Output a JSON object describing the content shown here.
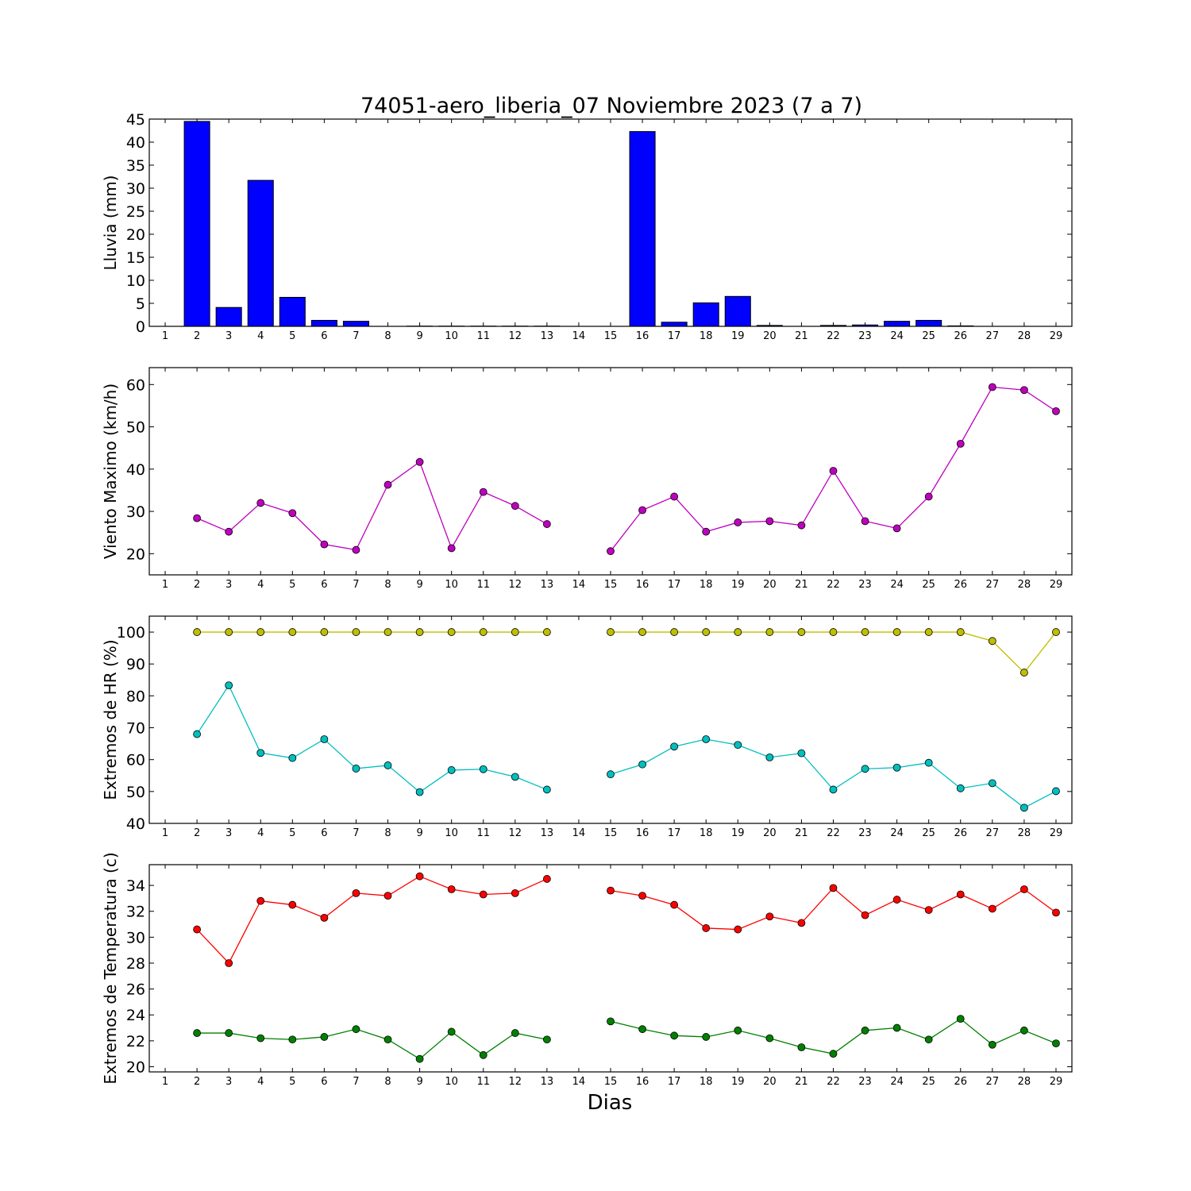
{
  "title": "74051-aero_liberia_07 Noviembre 2023  (7 a 7)",
  "xlabel": "Dias",
  "chart_data": [
    {
      "type": "bar",
      "ylabel": "Lluvia (mm)",
      "ylim": [
        0,
        45
      ],
      "yticks": [
        0,
        5,
        10,
        15,
        20,
        25,
        30,
        35,
        40,
        45
      ],
      "x": [
        1,
        2,
        3,
        4,
        5,
        6,
        7,
        8,
        9,
        10,
        11,
        12,
        13,
        14,
        15,
        16,
        17,
        18,
        19,
        20,
        21,
        22,
        23,
        24,
        25,
        26,
        27,
        28,
        29
      ],
      "series": [
        {
          "color": "#0000ff",
          "values": [
            0,
            44.5,
            4.1,
            31.7,
            6.3,
            1.3,
            1.1,
            0,
            0.05,
            0.05,
            0.05,
            0.05,
            0.05,
            0,
            0,
            42.3,
            0.9,
            5.1,
            6.5,
            0.2,
            0,
            0.2,
            0.3,
            1.1,
            1.3,
            0.1,
            0,
            0,
            0
          ]
        }
      ]
    },
    {
      "type": "line",
      "ylabel": "Viento Maximo (km/h)",
      "ylim": [
        15,
        64
      ],
      "yticks": [
        20,
        30,
        40,
        50,
        60
      ],
      "x": [
        1,
        2,
        3,
        4,
        5,
        6,
        7,
        8,
        9,
        10,
        11,
        12,
        13,
        14,
        15,
        16,
        17,
        18,
        19,
        20,
        21,
        22,
        23,
        24,
        25,
        26,
        27,
        28,
        29
      ],
      "series": [
        {
          "color": "#bf00bf",
          "values": [
            null,
            28.4,
            25.2,
            32.0,
            29.6,
            22.2,
            20.9,
            36.3,
            41.7,
            21.3,
            34.6,
            31.3,
            27.0,
            null,
            20.6,
            30.3,
            33.5,
            25.2,
            27.4,
            27.7,
            26.7,
            39.6,
            27.7,
            26.0,
            33.5,
            46.0,
            59.4,
            58.7,
            53.7
          ]
        }
      ]
    },
    {
      "type": "line",
      "ylabel": "Extremos de HR (%)",
      "ylim": [
        40,
        105
      ],
      "yticks": [
        40,
        50,
        60,
        70,
        80,
        90,
        100
      ],
      "x": [
        1,
        2,
        3,
        4,
        5,
        6,
        7,
        8,
        9,
        10,
        11,
        12,
        13,
        14,
        15,
        16,
        17,
        18,
        19,
        20,
        21,
        22,
        23,
        24,
        25,
        26,
        27,
        28,
        29
      ],
      "series": [
        {
          "color": "#bfbf00",
          "values": [
            null,
            100,
            100,
            100,
            100,
            100,
            100,
            100,
            100,
            100,
            100,
            100,
            100,
            null,
            100,
            100,
            100,
            100,
            100,
            100,
            100,
            100,
            100,
            100,
            100,
            100,
            97.2,
            87.3,
            100
          ]
        },
        {
          "color": "#00bfbf",
          "values": [
            null,
            68.0,
            83.3,
            62.1,
            60.5,
            66.4,
            57.2,
            58.2,
            49.8,
            56.7,
            57.0,
            54.6,
            50.6,
            null,
            55.4,
            58.5,
            64.1,
            66.4,
            64.6,
            60.7,
            62.0,
            50.6,
            57.1,
            57.5,
            59.0,
            51.0,
            52.6,
            44.9,
            50.1
          ]
        }
      ]
    },
    {
      "type": "line",
      "ylabel": "Extremos de Temperatura (c)",
      "ylim": [
        19.6,
        35.6
      ],
      "yticks": [
        20,
        22,
        24,
        26,
        28,
        30,
        32,
        34
      ],
      "x": [
        1,
        2,
        3,
        4,
        5,
        6,
        7,
        8,
        9,
        10,
        11,
        12,
        13,
        14,
        15,
        16,
        17,
        18,
        19,
        20,
        21,
        22,
        23,
        24,
        25,
        26,
        27,
        28,
        29
      ],
      "series": [
        {
          "color": "#ff0000",
          "values": [
            null,
            30.6,
            28.0,
            32.8,
            32.5,
            31.5,
            33.4,
            33.2,
            34.7,
            33.7,
            33.3,
            33.4,
            34.5,
            null,
            33.6,
            33.2,
            32.5,
            30.7,
            30.6,
            31.6,
            31.1,
            33.8,
            31.7,
            32.9,
            32.1,
            33.3,
            32.2,
            33.7,
            31.9
          ]
        },
        {
          "color": "#008000",
          "values": [
            null,
            22.6,
            22.6,
            22.2,
            22.1,
            22.3,
            22.9,
            22.1,
            20.6,
            22.7,
            20.9,
            22.6,
            22.1,
            null,
            23.5,
            22.9,
            22.4,
            22.3,
            22.8,
            22.2,
            21.5,
            21.0,
            22.8,
            23.0,
            22.1,
            23.7,
            21.7,
            22.8,
            21.8
          ]
        }
      ]
    }
  ]
}
